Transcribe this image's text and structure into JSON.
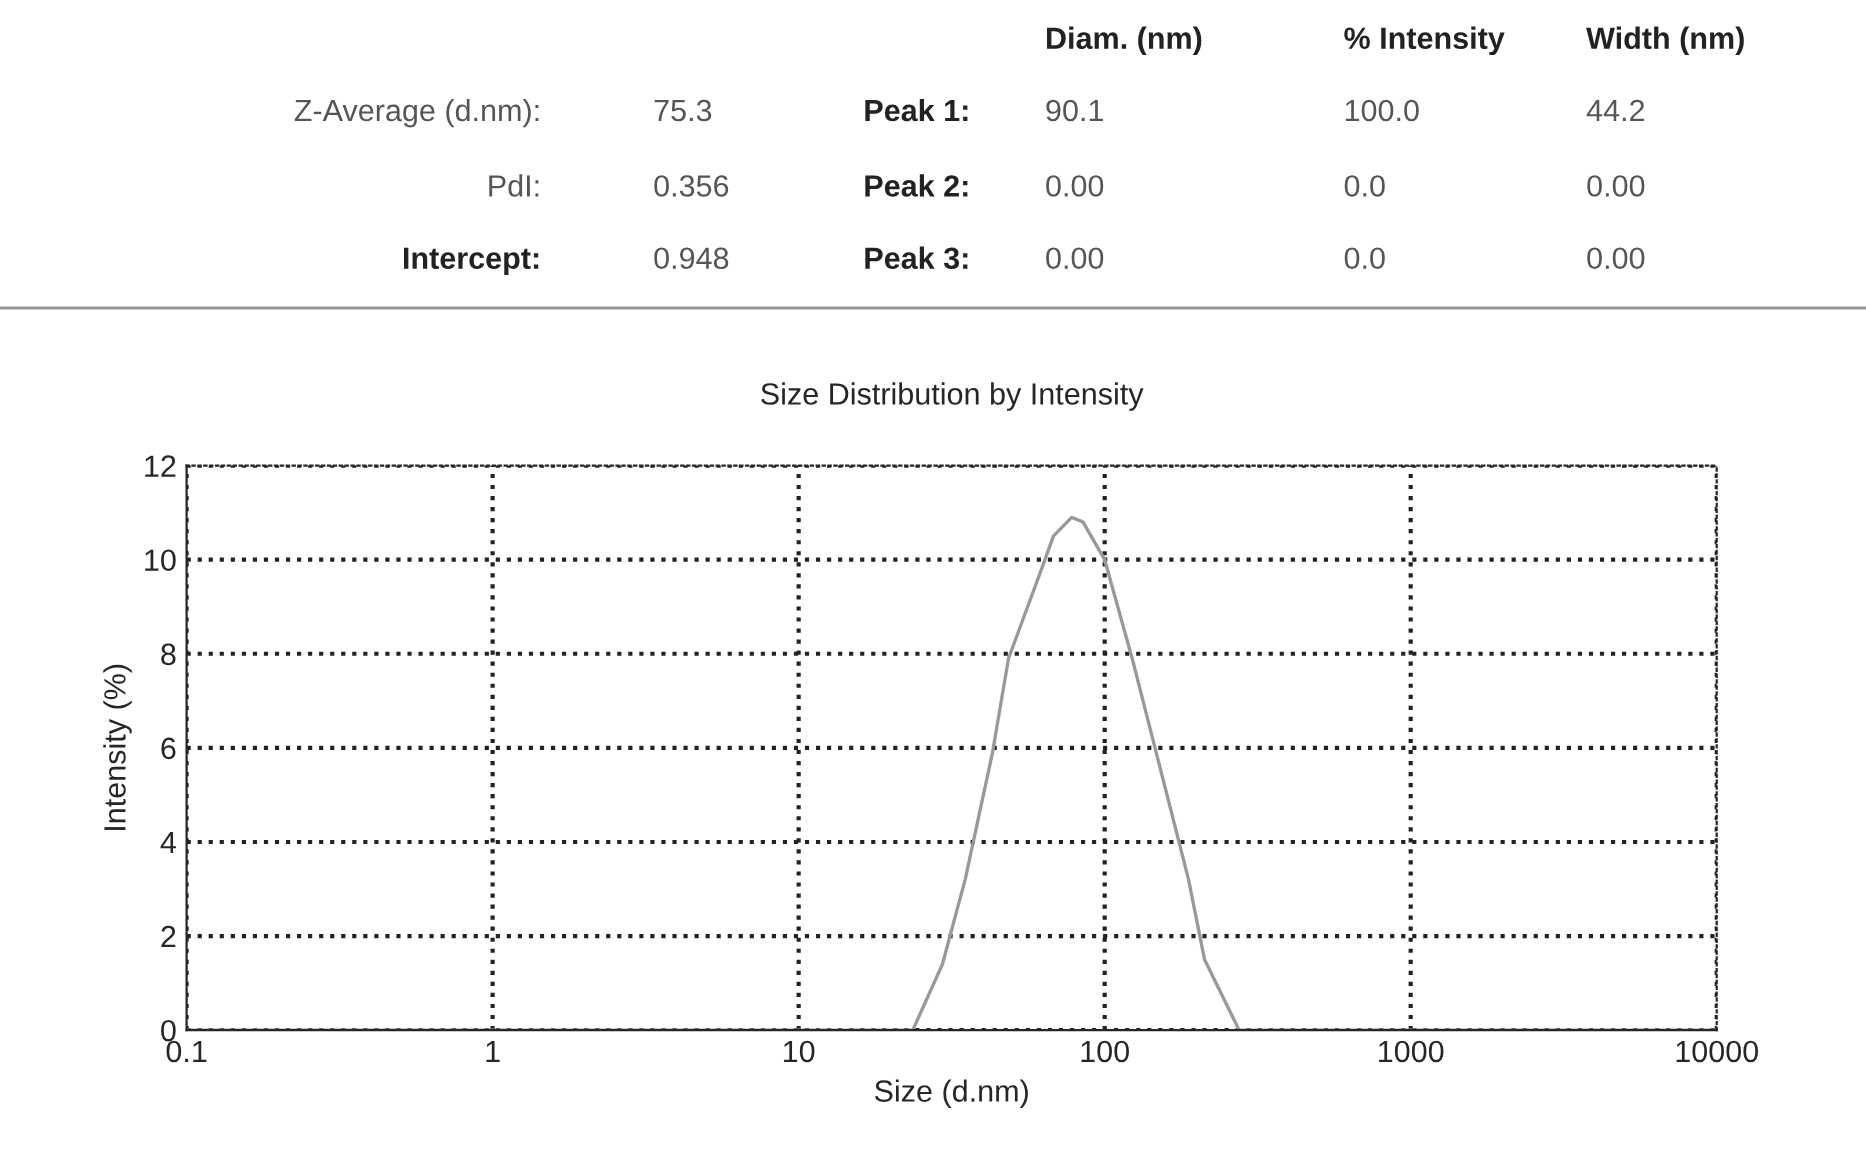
{
  "chart_data": [
    {
      "type": "other",
      "annotations": [
        "Diam. (nm)",
        "% Intensity",
        "Width (nm)",
        "Z-Average (d.nm):",
        "75.3",
        "Peak 1:",
        "90.1",
        "100.0",
        "44.2",
        "PdI:",
        "0.356",
        "Peak 2:",
        "0.00",
        "0.0",
        "0.00",
        "Intercept:",
        "0.948",
        "Peak 3:",
        "0.00",
        "0.0",
        "0.00"
      ]
    },
    {
      "type": "line",
      "title": "Size Distribution by Intensity",
      "xlabel": "Size (d.nm)",
      "ylabel": "Intensity (%)",
      "log": "x",
      "grid": true,
      "line_style": "solid",
      "x": [
        0.1,
        23.6,
        29.5,
        35,
        43,
        48.5,
        63,
        68,
        78,
        85,
        100,
        123,
        157,
        188,
        212,
        275,
        10000
      ],
      "series": [
        {
          "color": "#999999",
          "values": [
            0,
            0,
            1.4,
            3.2,
            5.9,
            7.9,
            9.9,
            10.5,
            10.9,
            10.8,
            10.0,
            7.9,
            5.2,
            3.2,
            1.5,
            0,
            0
          ]
        }
      ],
      "xlim": [
        0.1,
        10000
      ],
      "xticks": [
        {
          "value": 0.1,
          "label": "0.1"
        },
        1,
        10,
        100,
        1000,
        10000
      ],
      "ylim": [
        0,
        12
      ],
      "yticks": [
        0,
        2,
        4,
        6,
        8,
        10,
        12
      ]
    }
  ]
}
